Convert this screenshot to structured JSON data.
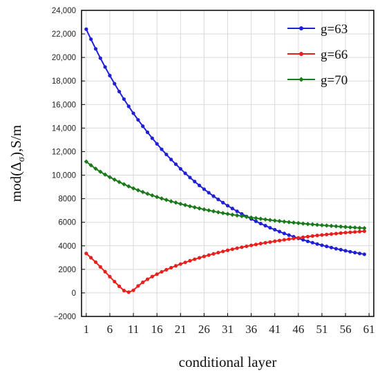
{
  "chart_data": {
    "type": "line",
    "xlabel": "conditional layer",
    "ylabel_prefix": "mod(Δ",
    "ylabel_sub": "σ",
    "ylabel_suffix": "),S/m",
    "xlim": [
      0,
      62
    ],
    "ylim": [
      -2000,
      24000
    ],
    "xticks": [
      1,
      6,
      11,
      16,
      21,
      26,
      31,
      36,
      41,
      46,
      51,
      56,
      61
    ],
    "xtick_labels": [
      "1",
      "6",
      "11",
      "16",
      "21",
      "26",
      "31",
      "36",
      "41",
      "46",
      "51",
      "56",
      "61"
    ],
    "yticks": [
      -2000,
      0,
      2000,
      4000,
      6000,
      8000,
      10000,
      12000,
      14000,
      16000,
      18000,
      20000,
      22000,
      24000
    ],
    "ytick_labels": [
      "−2000",
      "0",
      "2000",
      "4000",
      "6000",
      "8000",
      "10,000",
      "12,000",
      "14,000",
      "16,000",
      "18,000",
      "20,000",
      "22,000",
      "24,000"
    ],
    "grid": true,
    "legend_position": "top-right",
    "x": [
      1,
      2,
      3,
      4,
      5,
      6,
      7,
      8,
      9,
      10,
      11,
      12,
      13,
      14,
      15,
      16,
      17,
      18,
      19,
      20,
      21,
      22,
      23,
      24,
      25,
      26,
      27,
      28,
      29,
      30,
      31,
      32,
      33,
      34,
      35,
      36,
      37,
      38,
      39,
      40,
      41,
      42,
      43,
      44,
      45,
      46,
      47,
      48,
      49,
      50,
      51,
      52,
      53,
      54,
      55,
      56,
      57,
      58,
      59,
      60
    ],
    "series": [
      {
        "name": "g=63",
        "color": "#1f1fd6",
        "marker": "circle",
        "values": [
          22400,
          21550,
          20730,
          19940,
          19190,
          18460,
          17770,
          17100,
          16460,
          15850,
          15260,
          14700,
          14160,
          13640,
          13140,
          12660,
          12200,
          11760,
          11330,
          10930,
          10540,
          10160,
          9800,
          9460,
          9130,
          8810,
          8510,
          8220,
          7940,
          7670,
          7410,
          7170,
          6930,
          6710,
          6490,
          6280,
          6080,
          5890,
          5710,
          5530,
          5370,
          5210,
          5050,
          4910,
          4770,
          4630,
          4510,
          4380,
          4270,
          4150,
          4050,
          3950,
          3850,
          3750,
          3670,
          3580,
          3500,
          3420,
          3350,
          3280
        ]
      },
      {
        "name": "g=66",
        "color": "#e8201c",
        "marker": "circle",
        "values": [
          3350,
          2990,
          2610,
          2210,
          1800,
          1380,
          960,
          560,
          200,
          60,
          220,
          590,
          900,
          1160,
          1390,
          1590,
          1790,
          1970,
          2140,
          2300,
          2450,
          2590,
          2730,
          2860,
          2980,
          3100,
          3210,
          3320,
          3420,
          3520,
          3620,
          3710,
          3800,
          3880,
          3960,
          4040,
          4110,
          4190,
          4260,
          4320,
          4390,
          4450,
          4510,
          4570,
          4620,
          4680,
          4730,
          4780,
          4830,
          4880,
          4920,
          4960,
          5000,
          5040,
          5080,
          5120,
          5150,
          5180,
          5210,
          5240
        ]
      },
      {
        "name": "g=70",
        "color": "#1a7a1a",
        "marker": "diamond",
        "values": [
          11150,
          10840,
          10550,
          10290,
          10050,
          9830,
          9620,
          9420,
          9230,
          9050,
          8880,
          8720,
          8570,
          8420,
          8280,
          8150,
          8020,
          7900,
          7780,
          7670,
          7560,
          7460,
          7360,
          7270,
          7180,
          7090,
          7010,
          6930,
          6850,
          6780,
          6710,
          6640,
          6580,
          6520,
          6460,
          6400,
          6350,
          6290,
          6240,
          6190,
          6140,
          6100,
          6050,
          6010,
          5970,
          5930,
          5890,
          5850,
          5820,
          5780,
          5750,
          5720,
          5690,
          5660,
          5630,
          5600,
          5570,
          5550,
          5520,
          5500
        ]
      }
    ]
  }
}
